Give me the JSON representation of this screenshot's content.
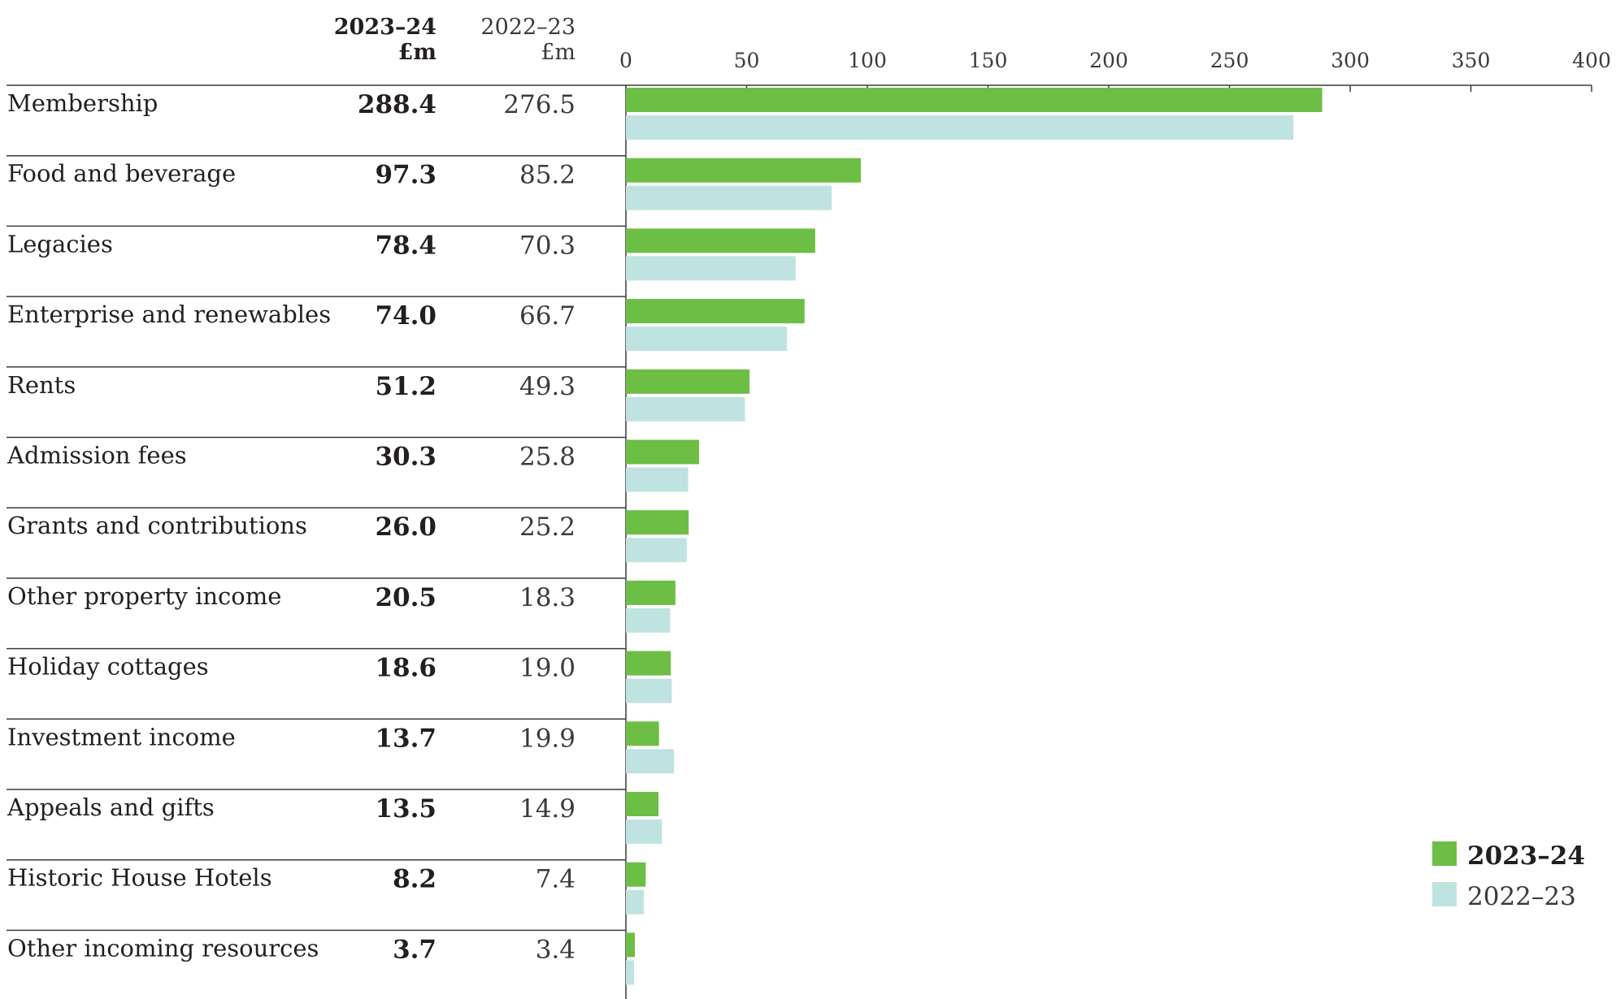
{
  "chart_data": {
    "type": "bar",
    "orientation": "horizontal",
    "title": "",
    "columns": {
      "current": {
        "label": "2023–24",
        "unit": "£m"
      },
      "previous": {
        "label": "2022–23",
        "unit": "£m"
      }
    },
    "xlim": [
      0,
      400
    ],
    "xticks": [
      "0",
      "50",
      "100",
      "150",
      "200",
      "250",
      "300",
      "350",
      "400"
    ],
    "tick_values": [
      0,
      50,
      100,
      150,
      200,
      250,
      300,
      350,
      400
    ],
    "categories": [
      "Membership",
      "Food and beverage",
      "Legacies",
      "Enterprise and renewables",
      "Rents",
      "Admission fees",
      "Grants and contributions",
      "Other property income",
      "Holiday cottages",
      "Investment income",
      "Appeals and gifts",
      "Historic House Hotels",
      "Other incoming resources"
    ],
    "series": [
      {
        "name": "2023–24",
        "color": "#6dbe45",
        "values": [
          288.4,
          97.3,
          78.4,
          74.0,
          51.2,
          30.3,
          26.0,
          20.5,
          18.6,
          13.7,
          13.5,
          8.2,
          3.7
        ],
        "labels": [
          "288.4",
          "97.3",
          "78.4",
          "74.0",
          "51.2",
          "30.3",
          "26.0",
          "20.5",
          "18.6",
          "13.7",
          "13.5",
          "8.2",
          "3.7"
        ]
      },
      {
        "name": "2022–23",
        "color": "#bfe3e0",
        "values": [
          276.5,
          85.2,
          70.3,
          66.7,
          49.3,
          25.8,
          25.2,
          18.3,
          19.0,
          19.9,
          14.9,
          7.4,
          3.4
        ],
        "labels": [
          "276.5",
          "85.2",
          "70.3",
          "66.7",
          "49.3",
          "25.8",
          "25.2",
          "18.3",
          "19.0",
          "19.9",
          "14.9",
          "7.4",
          "3.4"
        ]
      }
    ],
    "legend": {
      "position": "bottom-right",
      "items": [
        "2023–24",
        "2022–23"
      ]
    },
    "grid": false
  }
}
